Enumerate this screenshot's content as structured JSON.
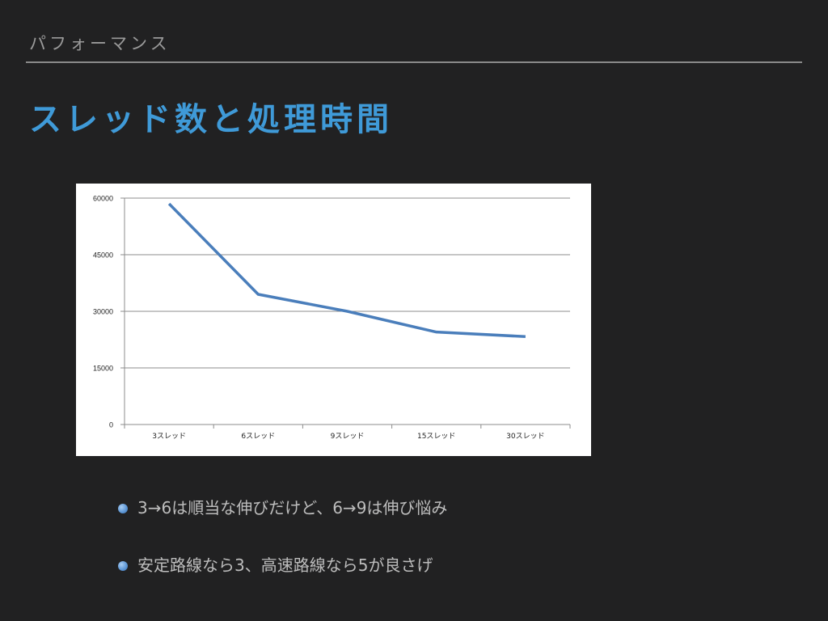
{
  "slide": {
    "section": "パフォーマンス",
    "title": "スレッド数と処理時間"
  },
  "chart_data": {
    "type": "line",
    "categories": [
      "3スレッド",
      "6スレッド",
      "9スレッド",
      "15スレッド",
      "30スレッド"
    ],
    "series": [
      {
        "values": [
          58500,
          34500,
          30000,
          24500,
          23300
        ],
        "color": "#4a7ebb"
      }
    ],
    "y_ticks": [
      "0",
      "15000",
      "30000",
      "45000",
      "60000"
    ],
    "ylim": [
      0,
      60000
    ],
    "grid": true,
    "legend": "none",
    "title": "",
    "xlabel": "",
    "ylabel": ""
  },
  "bullets": [
    {
      "text": "3→6は順当な伸びだけど、6→9は伸び悩み"
    },
    {
      "text": "安定路線なら3、高速路線なら5が良さげ"
    }
  ],
  "colors": {
    "background": "#212122",
    "title": "#3f9ad8",
    "section": "#9a9a9a",
    "bullet_text": "#bdbdbd",
    "series": "#4a7ebb"
  }
}
